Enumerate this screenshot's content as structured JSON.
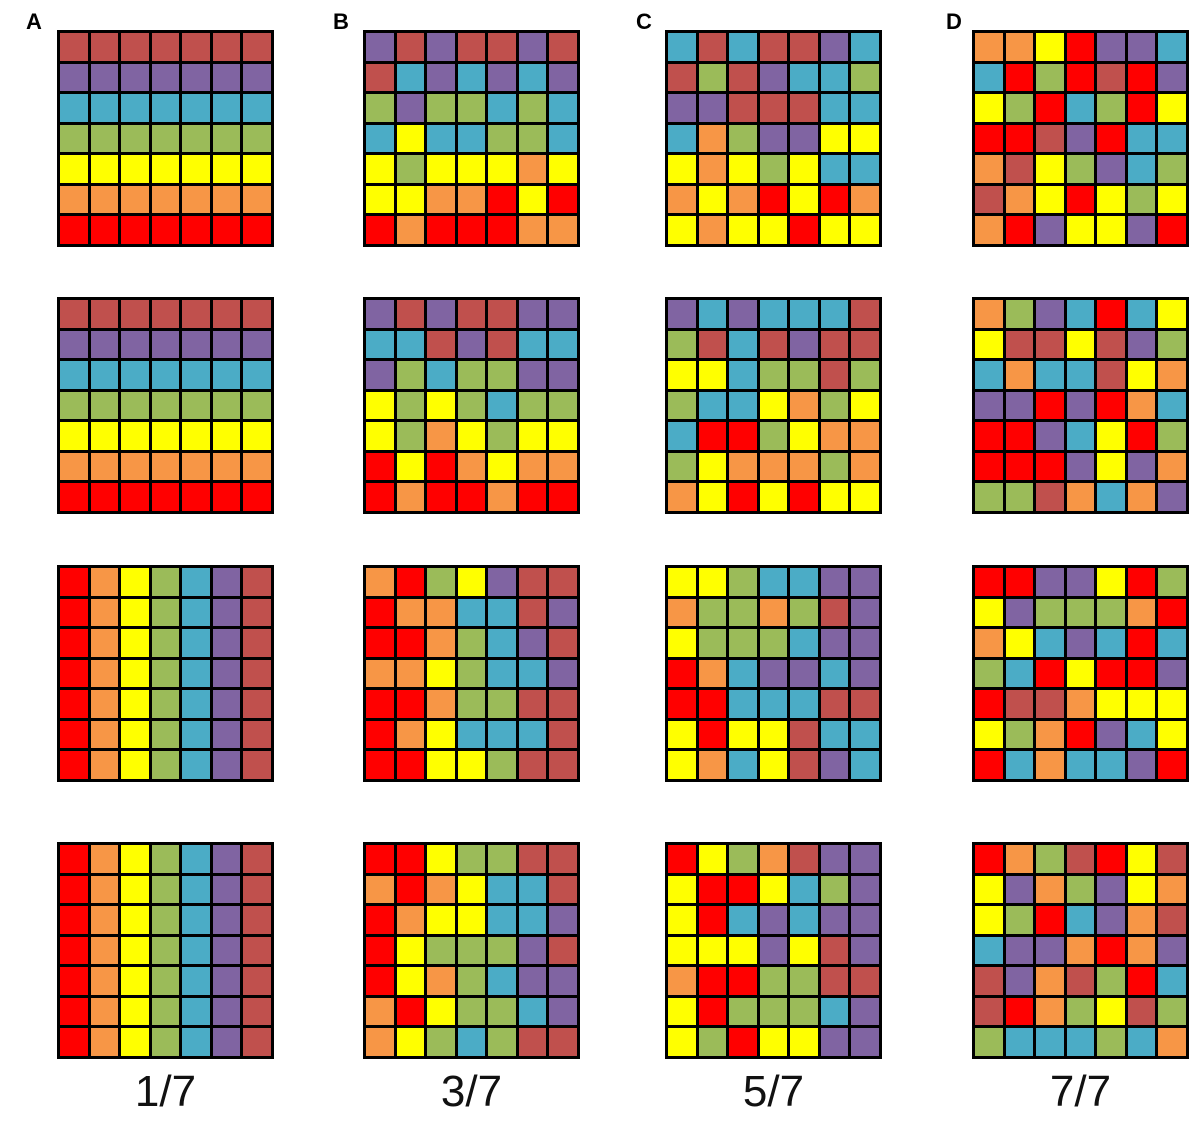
{
  "palette": {
    "R": "#ff0000",
    "O": "#f79646",
    "Y": "#ffff00",
    "G": "#9bbb59",
    "C": "#4bacc6",
    "P": "#8064a2",
    "M": "#c0504d"
  },
  "columns": [
    {
      "label": "A",
      "caption": "1/7",
      "grids": [
        [
          "MMMMMMM",
          "PPPPPPP",
          "CCCCCCC",
          "GGGGGGG",
          "YYYYYYY",
          "OOOOOOO",
          "RRRRRRR"
        ],
        [
          "MMMMMMM",
          "PPPPPPP",
          "CCCCCCC",
          "GGGGGGG",
          "YYYYYYY",
          "OOOOOOO",
          "RRRRRRR"
        ],
        [
          "ROYGCPM",
          "ROYGCPM",
          "ROYGCPM",
          "ROYGCPM",
          "ROYGCPM",
          "ROYGCPM",
          "ROYGCPM"
        ],
        [
          "ROYGCPM",
          "ROYGCPM",
          "ROYGCPM",
          "ROYGCPM",
          "ROYGCPM",
          "ROYGCPM",
          "ROYGCPM"
        ]
      ]
    },
    {
      "label": "B",
      "caption": "3/7",
      "grids": [
        [
          "PMPMMPM",
          "MCPCPCP",
          "GPGGCGC",
          "CYCCGGC",
          "YGYYYOY",
          "YYOORYR",
          "RORRROO"
        ],
        [
          "PMPMMPP",
          "CCMPMCC",
          "PGCGGPP",
          "YGYGCGG",
          "YGOYGYY",
          "RYROYOO",
          "RORRORR"
        ],
        [
          "ORGYPMM",
          "ROOCCMP",
          "RROGCPM",
          "OOYGCCP",
          "RROGGMM",
          "ROYCCCM",
          "RRYYGMM"
        ],
        [
          "RRYGGMM",
          "OROYCCM",
          "ROYYCCP",
          "RYGGGPM",
          "RYOGCPP",
          "ORYGGCP",
          "OYGCGMM"
        ]
      ]
    },
    {
      "label": "C",
      "caption": "5/7",
      "grids": [
        [
          "CMCMMPC",
          "MGMPCCG",
          "PPMMMCC",
          "COGPPYY",
          "YOYGYCC",
          "OYORYRO",
          "YOYYRYY"
        ],
        [
          "PCPCCCM",
          "GMCMPMM",
          "YYCGGMG",
          "GCCYOGY",
          "CRRGYOO",
          "GYOOOGO",
          "OYRYRYY"
        ],
        [
          "YYGCCPP",
          "OGGOGMP",
          "YGGGCPP",
          "ROCPPCP",
          "RRCCCMM",
          "YRYYMCC",
          "YOCYMPC"
        ],
        [
          "RYGOMPP",
          "YRRYCGP",
          "YRCPCPP",
          "YYYPYMP",
          "ORRGGMM",
          "YRGGGCP",
          "YGRYYPP"
        ]
      ]
    },
    {
      "label": "D",
      "caption": "7/7",
      "grids": [
        [
          "OOYRPPC",
          "CRGRMRP",
          "YGRCGRY",
          "RRMPRCC",
          "OMYGPCG",
          "MOYRYGY",
          "ORPYYPR"
        ],
        [
          "OGPCRCY",
          "YMMYMPG",
          "COCCMYO",
          "PPRPROC",
          "RRPCYRG",
          "RRRPYPO",
          "GGMOCOP"
        ],
        [
          "RRPPYRG",
          "YPGGGOR",
          "OYCPCRC",
          "GCRYRRP",
          "RMMOYYY",
          "YGORPCY",
          "RCOCCPR"
        ],
        [
          "ROGMRYM",
          "YPOGPYO",
          "YGRCPOM",
          "CPPOROP",
          "MPOMGRC",
          "MROGYMG",
          "GCCCGCO"
        ]
      ]
    }
  ]
}
